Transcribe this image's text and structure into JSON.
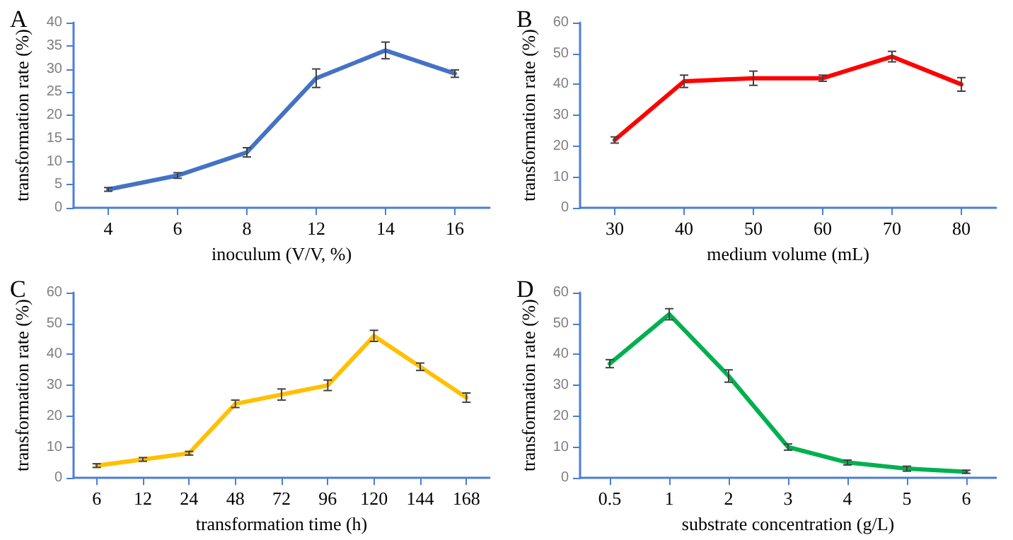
{
  "chart_data": [
    {
      "type": "line",
      "title": "A",
      "xlabel": "inoculum (V/V, %)",
      "ylabel": "transformation rate (%)",
      "categories": [
        "4",
        "6",
        "8",
        "12",
        "14",
        "16"
      ],
      "series": [
        {
          "color": "#4472c4",
          "values": [
            4,
            7,
            12,
            28,
            34,
            29
          ],
          "errors": [
            0.4,
            0.6,
            1,
            2,
            1.8,
            0.8
          ]
        }
      ],
      "ylim": [
        0,
        40
      ],
      "yticks": [
        0,
        5,
        10,
        15,
        20,
        25,
        30,
        35,
        40
      ],
      "grid": false,
      "marker": "none",
      "line_style": "solid"
    },
    {
      "type": "line",
      "title": "B",
      "xlabel": "medium volume (mL)",
      "ylabel": "transformation rate (%)",
      "categories": [
        "30",
        "40",
        "50",
        "60",
        "70",
        "80"
      ],
      "series": [
        {
          "color": "#ff0000",
          "values": [
            22,
            41,
            42,
            42,
            49,
            40
          ],
          "errors": [
            1,
            2,
            2.3,
            1,
            1.7,
            2.2
          ]
        }
      ],
      "ylim": [
        0,
        60
      ],
      "yticks": [
        0,
        10,
        20,
        30,
        40,
        50,
        60
      ],
      "grid": false,
      "marker": "none",
      "line_style": "solid"
    },
    {
      "type": "line",
      "title": "C",
      "xlabel": "transformation time (h)",
      "ylabel": "transformation rate (%)",
      "categories": [
        "6",
        "12",
        "24",
        "48",
        "72",
        "96",
        "120",
        "144",
        "168"
      ],
      "series": [
        {
          "color": "#ffc000",
          "values": [
            4,
            6,
            8,
            24,
            27,
            30,
            46,
            36,
            26
          ],
          "errors": [
            0.6,
            0.6,
            0.6,
            1.2,
            1.8,
            1.7,
            1.8,
            1.2,
            1.5
          ]
        }
      ],
      "ylim": [
        0,
        60
      ],
      "yticks": [
        0,
        10,
        20,
        30,
        40,
        50,
        60
      ],
      "grid": false,
      "marker": "none",
      "line_style": "solid"
    },
    {
      "type": "line",
      "title": "D",
      "xlabel": "substrate concentration (g/L)",
      "ylabel": "transformation rate (%)",
      "categories": [
        "0.5",
        "1",
        "2",
        "3",
        "4",
        "5",
        "6"
      ],
      "series": [
        {
          "color": "#00b050",
          "values": [
            37,
            53,
            33,
            10,
            5,
            3,
            2
          ],
          "errors": [
            1.3,
            1.8,
            2,
            1,
            0.8,
            0.8,
            0.5
          ]
        }
      ],
      "ylim": [
        0,
        60
      ],
      "yticks": [
        0,
        10,
        20,
        30,
        40,
        50,
        60
      ],
      "grid": false,
      "marker": "none",
      "line_style": "solid"
    }
  ]
}
